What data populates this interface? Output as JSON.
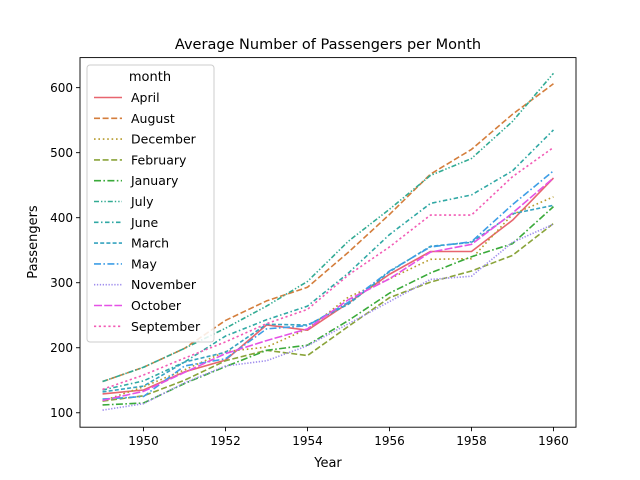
{
  "chart_data": {
    "type": "line",
    "title": "Average Number of Passengers per Month",
    "xlabel": "Year",
    "ylabel": "Passengers",
    "xlim": [
      1948.45,
      1960.55
    ],
    "ylim": [
      77.8,
      646.2
    ],
    "xticks": [
      1950,
      1952,
      1954,
      1956,
      1958,
      1960
    ],
    "yticks": [
      100,
      200,
      300,
      400,
      500,
      600
    ],
    "grid": false,
    "legend": {
      "title": "month",
      "placement": "top-left"
    },
    "x": [
      1949,
      1950,
      1951,
      1952,
      1953,
      1954,
      1955,
      1956,
      1957,
      1958,
      1959,
      1960
    ],
    "series": [
      {
        "name": "April",
        "color": "#e8656f",
        "dash": "solid",
        "values": [
          129,
          135,
          163,
          181,
          235,
          227,
          269,
          313,
          348,
          348,
          396,
          461
        ]
      },
      {
        "name": "August",
        "color": "#d47e3c",
        "dash": "dashed",
        "values": [
          148,
          170,
          199,
          242,
          272,
          293,
          347,
          405,
          467,
          505,
          559,
          606
        ]
      },
      {
        "name": "December",
        "color": "#b59a2a",
        "dash": "dotted",
        "values": [
          118,
          140,
          166,
          194,
          201,
          229,
          278,
          306,
          336,
          337,
          405,
          432
        ]
      },
      {
        "name": "February",
        "color": "#8aa43a",
        "dash": "dashed",
        "values": [
          118,
          126,
          150,
          180,
          196,
          188,
          233,
          277,
          301,
          318,
          342,
          391
        ]
      },
      {
        "name": "January",
        "color": "#3aaa3a",
        "dash": "dashdot",
        "values": [
          112,
          115,
          145,
          171,
          196,
          204,
          242,
          284,
          315,
          340,
          360,
          417
        ]
      },
      {
        "name": "July",
        "color": "#32ab93",
        "dash": "dashdotdot",
        "values": [
          148,
          170,
          199,
          230,
          264,
          302,
          364,
          413,
          465,
          491,
          548,
          622
        ]
      },
      {
        "name": "June",
        "color": "#30a8a4",
        "dash": "loosedashdot",
        "values": [
          135,
          149,
          178,
          218,
          243,
          264,
          315,
          374,
          422,
          435,
          472,
          535
        ]
      },
      {
        "name": "March",
        "color": "#36a3bf",
        "dash": "finedash",
        "values": [
          132,
          141,
          178,
          193,
          236,
          235,
          267,
          317,
          356,
          362,
          406,
          419
        ]
      },
      {
        "name": "May",
        "color": "#3e9ee6",
        "dash": "dashdot",
        "values": [
          121,
          125,
          172,
          183,
          229,
          234,
          270,
          318,
          355,
          363,
          420,
          472
        ]
      },
      {
        "name": "November",
        "color": "#9f8ded",
        "dash": "densedot",
        "values": [
          104,
          114,
          146,
          172,
          180,
          203,
          237,
          271,
          305,
          310,
          362,
          390
        ]
      },
      {
        "name": "October",
        "color": "#e552e6",
        "dash": "longdash",
        "values": [
          119,
          133,
          162,
          191,
          211,
          229,
          274,
          306,
          347,
          359,
          407,
          461
        ]
      },
      {
        "name": "September",
        "color": "#f25bb5",
        "dash": "shortdot",
        "values": [
          136,
          158,
          184,
          209,
          237,
          259,
          312,
          355,
          404,
          404,
          463,
          508
        ]
      }
    ]
  }
}
